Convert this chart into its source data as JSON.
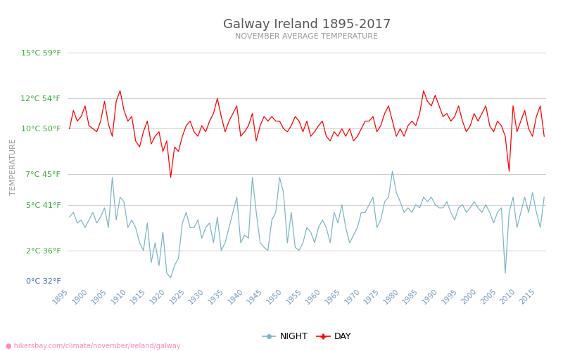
{
  "title": "Galway Ireland 1895-2017",
  "subtitle": "NOVEMBER AVERAGE TEMPERATURE",
  "ylabel": "TEMPERATURE",
  "url_text": "hikersbay.com/climate/november/ireland/galway",
  "year_start": 1895,
  "year_end": 2017,
  "ylim_min": 0,
  "ylim_max": 15,
  "yticks_c": [
    0,
    2,
    5,
    7,
    10,
    12,
    15
  ],
  "yticks_f": [
    32,
    36,
    41,
    45,
    50,
    54,
    59
  ],
  "bg_color": "#ffffff",
  "grid_color": "#cccccc",
  "day_color": "#ff0000",
  "night_color": "#7eb5c8",
  "title_color": "#555555",
  "subtitle_color": "#999999",
  "ylabel_color": "#999999",
  "tick_label_green": "#33aa33",
  "tick_label_blue": "#3366cc",
  "url_color": "#ff88bb",
  "xtick_color": "#7799bb",
  "day_data": [
    10.0,
    11.2,
    10.5,
    10.8,
    11.5,
    10.2,
    10.0,
    9.8,
    10.5,
    11.8,
    10.3,
    9.5,
    11.8,
    12.5,
    11.2,
    10.5,
    10.8,
    9.2,
    8.8,
    9.8,
    10.5,
    9.0,
    9.5,
    9.8,
    8.5,
    9.2,
    6.8,
    8.8,
    8.5,
    9.5,
    10.2,
    10.5,
    9.8,
    9.5,
    10.2,
    9.8,
    10.5,
    11.0,
    12.0,
    10.8,
    9.8,
    10.5,
    11.0,
    11.5,
    9.5,
    9.8,
    10.2,
    11.0,
    9.2,
    10.2,
    10.8,
    10.5,
    10.8,
    10.5,
    10.5,
    10.0,
    9.8,
    10.2,
    10.8,
    10.5,
    9.8,
    10.5,
    9.5,
    9.8,
    10.2,
    10.5,
    9.5,
    9.2,
    9.8,
    9.5,
    10.0,
    9.5,
    10.0,
    9.2,
    9.5,
    10.0,
    10.5,
    10.5,
    10.8,
    9.8,
    10.2,
    11.0,
    11.5,
    10.5,
    9.5,
    10.0,
    9.5,
    10.2,
    10.5,
    10.2,
    11.0,
    12.5,
    11.8,
    11.5,
    12.2,
    11.5,
    10.8,
    11.0,
    10.5,
    10.8,
    11.5,
    10.5,
    9.8,
    10.2,
    11.0,
    10.5,
    11.0,
    11.5,
    10.2,
    9.8,
    10.5,
    10.2,
    9.5,
    7.2,
    11.5,
    9.8,
    10.5,
    11.2,
    10.0,
    9.5,
    10.8,
    11.5,
    9.5
  ],
  "night_data": [
    4.2,
    4.5,
    3.8,
    4.0,
    3.5,
    4.0,
    4.5,
    3.8,
    4.2,
    4.8,
    3.5,
    6.8,
    4.0,
    5.5,
    5.2,
    3.5,
    4.0,
    3.5,
    2.5,
    2.0,
    3.8,
    1.2,
    2.5,
    1.0,
    3.2,
    0.5,
    0.2,
    1.0,
    1.5,
    3.8,
    4.5,
    3.5,
    3.5,
    4.0,
    2.8,
    3.5,
    3.8,
    2.5,
    4.2,
    2.0,
    2.5,
    3.5,
    4.5,
    5.5,
    2.5,
    3.0,
    2.8,
    6.8,
    4.5,
    2.5,
    2.2,
    2.0,
    4.0,
    4.5,
    6.8,
    5.8,
    2.5,
    4.5,
    2.2,
    2.0,
    2.5,
    3.5,
    3.2,
    2.5,
    3.5,
    4.0,
    3.5,
    2.5,
    4.5,
    3.8,
    5.0,
    3.5,
    2.5,
    3.0,
    3.5,
    4.5,
    4.5,
    5.0,
    5.5,
    3.5,
    4.0,
    5.2,
    5.5,
    7.2,
    5.8,
    5.2,
    4.5,
    4.8,
    4.5,
    5.0,
    4.8,
    5.5,
    5.2,
    5.5,
    5.0,
    4.8,
    4.8,
    5.2,
    4.5,
    4.0,
    4.8,
    5.0,
    4.5,
    4.8,
    5.2,
    4.8,
    4.5,
    5.0,
    4.5,
    3.8,
    4.5,
    4.8,
    0.5,
    4.5,
    5.5,
    3.5,
    4.5,
    5.5,
    4.5,
    5.8,
    4.5,
    3.5,
    5.5
  ]
}
